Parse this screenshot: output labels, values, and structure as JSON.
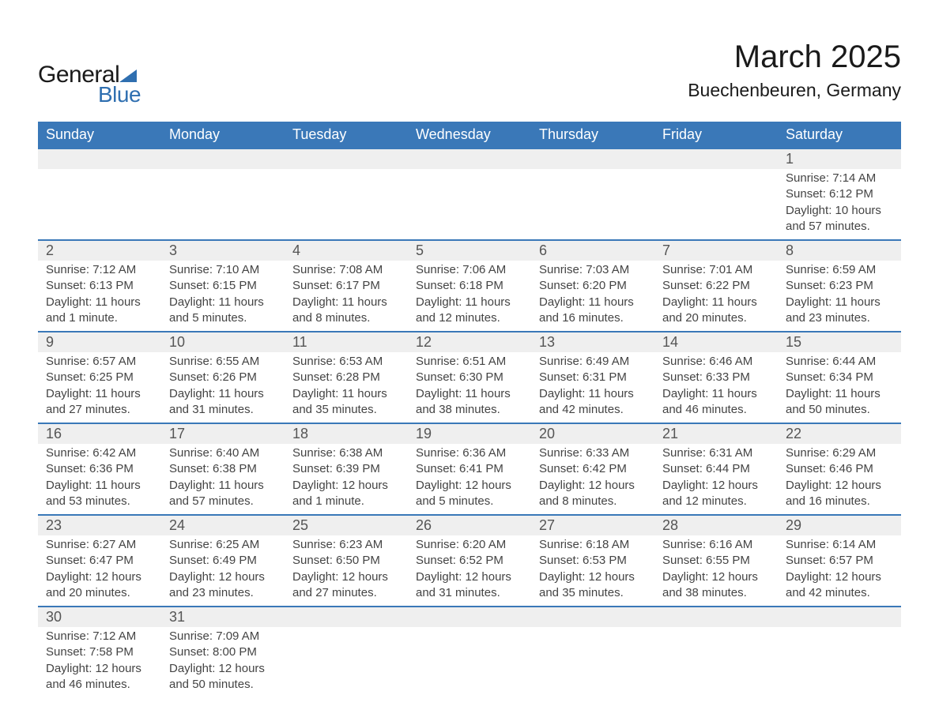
{
  "logo": {
    "text1": "General",
    "text2": "Blue",
    "triangle_color": "#2f6fb0"
  },
  "title": "March 2025",
  "location": "Buechenbeuren, Germany",
  "colors": {
    "header_bg": "#3a78b8",
    "header_text": "#ffffff",
    "daynum_bg": "#efefef",
    "row_border": "#3a78b8",
    "body_text": "#444444",
    "daynum_text": "#555555",
    "background": "#ffffff"
  },
  "weekdays": [
    "Sunday",
    "Monday",
    "Tuesday",
    "Wednesday",
    "Thursday",
    "Friday",
    "Saturday"
  ],
  "weeks": [
    [
      {
        "day": "",
        "details": []
      },
      {
        "day": "",
        "details": []
      },
      {
        "day": "",
        "details": []
      },
      {
        "day": "",
        "details": []
      },
      {
        "day": "",
        "details": []
      },
      {
        "day": "",
        "details": []
      },
      {
        "day": "1",
        "details": [
          "Sunrise: 7:14 AM",
          "Sunset: 6:12 PM",
          "Daylight: 10 hours and 57 minutes."
        ]
      }
    ],
    [
      {
        "day": "2",
        "details": [
          "Sunrise: 7:12 AM",
          "Sunset: 6:13 PM",
          "Daylight: 11 hours and 1 minute."
        ]
      },
      {
        "day": "3",
        "details": [
          "Sunrise: 7:10 AM",
          "Sunset: 6:15 PM",
          "Daylight: 11 hours and 5 minutes."
        ]
      },
      {
        "day": "4",
        "details": [
          "Sunrise: 7:08 AM",
          "Sunset: 6:17 PM",
          "Daylight: 11 hours and 8 minutes."
        ]
      },
      {
        "day": "5",
        "details": [
          "Sunrise: 7:06 AM",
          "Sunset: 6:18 PM",
          "Daylight: 11 hours and 12 minutes."
        ]
      },
      {
        "day": "6",
        "details": [
          "Sunrise: 7:03 AM",
          "Sunset: 6:20 PM",
          "Daylight: 11 hours and 16 minutes."
        ]
      },
      {
        "day": "7",
        "details": [
          "Sunrise: 7:01 AM",
          "Sunset: 6:22 PM",
          "Daylight: 11 hours and 20 minutes."
        ]
      },
      {
        "day": "8",
        "details": [
          "Sunrise: 6:59 AM",
          "Sunset: 6:23 PM",
          "Daylight: 11 hours and 23 minutes."
        ]
      }
    ],
    [
      {
        "day": "9",
        "details": [
          "Sunrise: 6:57 AM",
          "Sunset: 6:25 PM",
          "Daylight: 11 hours and 27 minutes."
        ]
      },
      {
        "day": "10",
        "details": [
          "Sunrise: 6:55 AM",
          "Sunset: 6:26 PM",
          "Daylight: 11 hours and 31 minutes."
        ]
      },
      {
        "day": "11",
        "details": [
          "Sunrise: 6:53 AM",
          "Sunset: 6:28 PM",
          "Daylight: 11 hours and 35 minutes."
        ]
      },
      {
        "day": "12",
        "details": [
          "Sunrise: 6:51 AM",
          "Sunset: 6:30 PM",
          "Daylight: 11 hours and 38 minutes."
        ]
      },
      {
        "day": "13",
        "details": [
          "Sunrise: 6:49 AM",
          "Sunset: 6:31 PM",
          "Daylight: 11 hours and 42 minutes."
        ]
      },
      {
        "day": "14",
        "details": [
          "Sunrise: 6:46 AM",
          "Sunset: 6:33 PM",
          "Daylight: 11 hours and 46 minutes."
        ]
      },
      {
        "day": "15",
        "details": [
          "Sunrise: 6:44 AM",
          "Sunset: 6:34 PM",
          "Daylight: 11 hours and 50 minutes."
        ]
      }
    ],
    [
      {
        "day": "16",
        "details": [
          "Sunrise: 6:42 AM",
          "Sunset: 6:36 PM",
          "Daylight: 11 hours and 53 minutes."
        ]
      },
      {
        "day": "17",
        "details": [
          "Sunrise: 6:40 AM",
          "Sunset: 6:38 PM",
          "Daylight: 11 hours and 57 minutes."
        ]
      },
      {
        "day": "18",
        "details": [
          "Sunrise: 6:38 AM",
          "Sunset: 6:39 PM",
          "Daylight: 12 hours and 1 minute."
        ]
      },
      {
        "day": "19",
        "details": [
          "Sunrise: 6:36 AM",
          "Sunset: 6:41 PM",
          "Daylight: 12 hours and 5 minutes."
        ]
      },
      {
        "day": "20",
        "details": [
          "Sunrise: 6:33 AM",
          "Sunset: 6:42 PM",
          "Daylight: 12 hours and 8 minutes."
        ]
      },
      {
        "day": "21",
        "details": [
          "Sunrise: 6:31 AM",
          "Sunset: 6:44 PM",
          "Daylight: 12 hours and 12 minutes."
        ]
      },
      {
        "day": "22",
        "details": [
          "Sunrise: 6:29 AM",
          "Sunset: 6:46 PM",
          "Daylight: 12 hours and 16 minutes."
        ]
      }
    ],
    [
      {
        "day": "23",
        "details": [
          "Sunrise: 6:27 AM",
          "Sunset: 6:47 PM",
          "Daylight: 12 hours and 20 minutes."
        ]
      },
      {
        "day": "24",
        "details": [
          "Sunrise: 6:25 AM",
          "Sunset: 6:49 PM",
          "Daylight: 12 hours and 23 minutes."
        ]
      },
      {
        "day": "25",
        "details": [
          "Sunrise: 6:23 AM",
          "Sunset: 6:50 PM",
          "Daylight: 12 hours and 27 minutes."
        ]
      },
      {
        "day": "26",
        "details": [
          "Sunrise: 6:20 AM",
          "Sunset: 6:52 PM",
          "Daylight: 12 hours and 31 minutes."
        ]
      },
      {
        "day": "27",
        "details": [
          "Sunrise: 6:18 AM",
          "Sunset: 6:53 PM",
          "Daylight: 12 hours and 35 minutes."
        ]
      },
      {
        "day": "28",
        "details": [
          "Sunrise: 6:16 AM",
          "Sunset: 6:55 PM",
          "Daylight: 12 hours and 38 minutes."
        ]
      },
      {
        "day": "29",
        "details": [
          "Sunrise: 6:14 AM",
          "Sunset: 6:57 PM",
          "Daylight: 12 hours and 42 minutes."
        ]
      }
    ],
    [
      {
        "day": "30",
        "details": [
          "Sunrise: 7:12 AM",
          "Sunset: 7:58 PM",
          "Daylight: 12 hours and 46 minutes."
        ]
      },
      {
        "day": "31",
        "details": [
          "Sunrise: 7:09 AM",
          "Sunset: 8:00 PM",
          "Daylight: 12 hours and 50 minutes."
        ]
      },
      {
        "day": "",
        "details": []
      },
      {
        "day": "",
        "details": []
      },
      {
        "day": "",
        "details": []
      },
      {
        "day": "",
        "details": []
      },
      {
        "day": "",
        "details": []
      }
    ]
  ]
}
